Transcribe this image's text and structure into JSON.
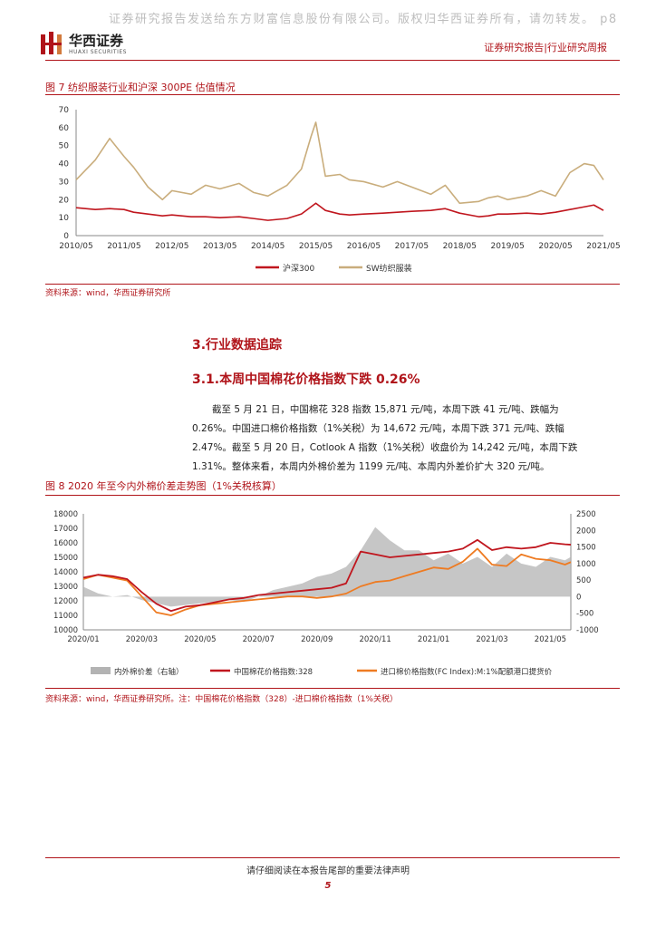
{
  "header": {
    "watermark": "证券研究报告发送给东方财富信息股份有限公司。版权归华西证券所有，请勿转发。 p8",
    "logo_cn": "华西证券",
    "logo_en": "HUAXI SECURITIES",
    "report_type": "证券研究报告|行业研究周报",
    "brand_color": "#b0141a"
  },
  "figure7": {
    "title": "图 7 纺织服装行业和沪深 300PE 估值情况",
    "source": "资料来源：wind，华西证券研究所",
    "chart_data": {
      "type": "line",
      "x_ticks": [
        "2010/05",
        "2011/05",
        "2012/05",
        "2013/05",
        "2014/05",
        "2015/05",
        "2016/05",
        "2017/05",
        "2018/05",
        "2019/05",
        "2020/05",
        "2021/05"
      ],
      "ylim": [
        0,
        70
      ],
      "y_ticks": [
        0,
        10,
        20,
        30,
        40,
        50,
        60,
        70
      ],
      "grid": false,
      "legend_position": "bottom",
      "x_sample_years": [
        2010.4,
        2010.8,
        2011.1,
        2011.4,
        2011.6,
        2011.9,
        2012.2,
        2012.4,
        2012.8,
        2013.1,
        2013.4,
        2013.8,
        2014.1,
        2014.4,
        2014.8,
        2015.1,
        2015.3,
        2015.4,
        2015.6,
        2015.9,
        2016.1,
        2016.4,
        2016.8,
        2017.1,
        2017.4,
        2017.8,
        2018.1,
        2018.4,
        2018.8,
        2019.0,
        2019.2,
        2019.4,
        2019.8,
        2020.1,
        2020.4,
        2020.7,
        2021.0,
        2021.2,
        2021.4
      ],
      "series": [
        {
          "name": "沪深300",
          "color": "#c0161e",
          "values": [
            15.5,
            14.5,
            15,
            14.5,
            13,
            12,
            11,
            11.5,
            10.5,
            10.5,
            10,
            10.5,
            9.5,
            8.5,
            9.5,
            12,
            16,
            18,
            14,
            12,
            11.5,
            12,
            12.5,
            13,
            13.5,
            14,
            15,
            12.5,
            10.5,
            11,
            12,
            12,
            12.5,
            12,
            13,
            14.5,
            16,
            17,
            14
          ]
        },
        {
          "name": "SW纺织服装",
          "color": "#c9ad7c",
          "values": [
            31,
            42,
            54,
            44,
            38,
            27,
            20,
            25,
            23,
            28,
            26,
            29,
            24,
            22,
            28,
            37,
            55,
            63,
            33,
            34,
            31,
            30,
            27,
            30,
            27,
            23,
            28,
            18,
            19,
            21,
            22,
            20,
            22,
            25,
            22,
            35,
            40,
            39,
            31
          ]
        }
      ]
    }
  },
  "section3": {
    "title": "3.行业数据追踪"
  },
  "section31": {
    "title": "3.1.本周中国棉花价格指数下跌 0.26%"
  },
  "paragraph": {
    "line1": "截至 5 月 21 日，中国棉花 328 指数 15,871 元/吨，本周下跌 41 元/吨、跌幅为",
    "line2": "0.26%。中国进口棉价格指数（1%关税）为 14,672 元/吨，本周下跌 371 元/吨、跌幅",
    "line3": "2.47%。截至 5 月 20 日，Cotlook A 指数（1%关税）收盘价为 14,242 元/吨，本周下跌",
    "line4": "1.31%。整体来看，本周内外棉价差为 1199 元/吨、本周内外差价扩大 320 元/吨。"
  },
  "figure8": {
    "title": "图 8 2020 年至今内外棉价差走势图（1%关税核算）",
    "source": "资料来源：wind，华西证券研究所。注：中国棉花价格指数（328）-进口棉价格指数（1%关税）",
    "chart_data": {
      "type": "line",
      "x_ticks": [
        "2020/01",
        "2020/03",
        "2020/05",
        "2020/07",
        "2020/09",
        "2020/11",
        "2021/01",
        "2021/03",
        "2021/05"
      ],
      "ylim_left": [
        10000,
        18000
      ],
      "y_ticks_left": [
        10000,
        11000,
        12000,
        13000,
        14000,
        15000,
        16000,
        17000,
        18000
      ],
      "ylim_right": [
        -1000,
        2500
      ],
      "y_ticks_right": [
        -1000,
        -500,
        0,
        500,
        1000,
        1500,
        2000,
        2500
      ],
      "grid": false,
      "legend_position": "bottom",
      "x_sample_months": [
        0,
        0.5,
        1,
        1.5,
        2,
        2.5,
        3,
        3.5,
        4,
        4.5,
        5,
        5.5,
        6,
        6.5,
        7,
        7.5,
        8,
        8.5,
        9,
        9.5,
        10,
        10.5,
        11,
        11.5,
        12,
        12.5,
        13,
        13.5,
        14,
        14.5,
        15,
        15.5,
        16,
        16.5,
        16.7
      ],
      "series": [
        {
          "name": "内外棉价差（右轴）",
          "color": "#b3b3b3",
          "axis": "right",
          "kind": "area",
          "values": [
            300,
            100,
            0,
            50,
            -100,
            -200,
            -300,
            -250,
            -200,
            -150,
            -100,
            -150,
            0,
            200,
            300,
            400,
            600,
            700,
            900,
            1400,
            2100,
            1700,
            1400,
            1400,
            1100,
            1300,
            1000,
            1200,
            900,
            1300,
            1000,
            900,
            1200,
            1100,
            1200
          ]
        },
        {
          "name": "中国棉花价格指数:328",
          "color": "#c0161e",
          "axis": "left",
          "kind": "line",
          "values": [
            13600,
            13800,
            13700,
            13500,
            12600,
            11800,
            11300,
            11600,
            11700,
            11900,
            12100,
            12200,
            12400,
            12500,
            12600,
            12700,
            12800,
            12900,
            13200,
            15400,
            15200,
            15000,
            15100,
            15200,
            15300,
            15400,
            15600,
            16200,
            15500,
            15700,
            15600,
            15700,
            16000,
            15900,
            15871
          ]
        },
        {
          "name": "进口棉价格指数(FC Index):M:1%配额港口提货价",
          "color": "#ee7b22",
          "axis": "left",
          "kind": "line",
          "values": [
            13500,
            13800,
            13600,
            13400,
            12300,
            11200,
            11000,
            11400,
            11700,
            11800,
            11900,
            12000,
            12100,
            12200,
            12300,
            12300,
            12200,
            12300,
            12500,
            13000,
            13300,
            13400,
            13700,
            14000,
            14300,
            14200,
            14700,
            15600,
            14500,
            14400,
            15200,
            14900,
            14800,
            14500,
            14672
          ]
        }
      ]
    }
  },
  "footer": {
    "note": "请仔细阅读在本报告尾部的重要法律声明",
    "page_number": "5"
  }
}
